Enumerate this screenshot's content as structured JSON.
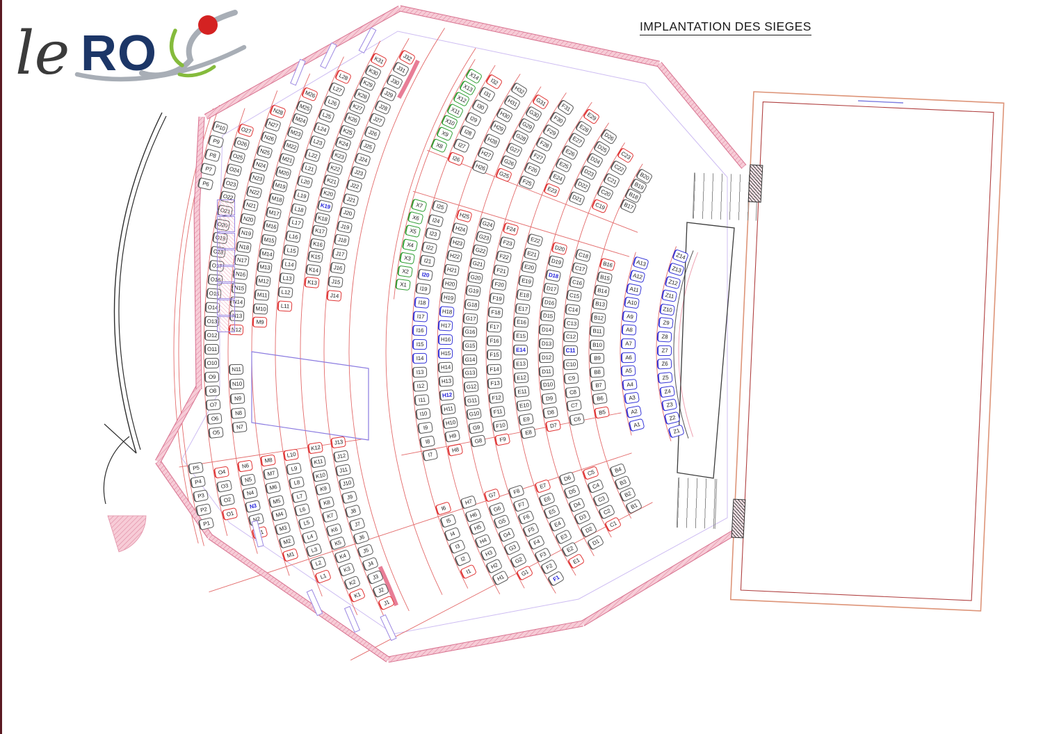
{
  "meta": {
    "drawing_title": "IMPLANTATION DES SIEGES"
  },
  "logo": {
    "script_text": "le",
    "main_text": "RO"
  },
  "colors": {
    "seat_black": "#565656",
    "seat_red": "#e03434",
    "seat_blue": "#3737d8",
    "seat_green": "#2f9e33",
    "label_blue": "#2424da",
    "wall_pink": "#f5c3d0",
    "wall_edge": "#d8718f",
    "arc_red": "#e36a6a",
    "logo_navy": "#1c3667",
    "logo_red": "#d42222",
    "logo_green": "#85bb3c",
    "logo_silver": "#a8aeb6"
  },
  "seating": {
    "rows": [
      {
        "letter": "Z",
        "blocks": [
          [
            1,
            14
          ]
        ],
        "style": "blue"
      },
      {
        "letter": "A",
        "blocks": [
          [
            1,
            13
          ]
        ],
        "style": "blue"
      },
      {
        "letter": "B",
        "blocks": [
          [
            1,
            4
          ],
          [
            5,
            16
          ],
          [
            17,
            20
          ]
        ],
        "red": [
          5,
          16
        ]
      },
      {
        "letter": "C",
        "blocks": [
          [
            1,
            5
          ],
          [
            6,
            18
          ],
          [
            19,
            23
          ]
        ],
        "red": [
          1,
          5,
          19,
          23
        ],
        "blue_label": [
          11
        ]
      },
      {
        "letter": "D",
        "blocks": [
          [
            1,
            6
          ],
          [
            7,
            20
          ],
          [
            21,
            26
          ]
        ],
        "red": [
          7,
          20
        ],
        "blue_label": [
          18
        ]
      },
      {
        "letter": "E",
        "blocks": [
          [
            1,
            7
          ],
          [
            8,
            22
          ],
          [
            23,
            29
          ]
        ],
        "red": [
          1,
          7,
          23,
          29
        ],
        "blue_label": [
          14
        ]
      },
      {
        "letter": "F",
        "blocks": [
          [
            1,
            8
          ],
          [
            9,
            24
          ],
          [
            25,
            31
          ]
        ],
        "red": [
          9,
          24
        ],
        "blue_label": [
          1
        ]
      },
      {
        "letter": "G",
        "blocks": [
          [
            1,
            7
          ],
          [
            8,
            24
          ],
          [
            25,
            31
          ]
        ],
        "red": [
          1,
          7,
          25,
          31
        ]
      },
      {
        "letter": "H",
        "blocks": [
          [
            1,
            7
          ],
          [
            8,
            25
          ],
          [
            26,
            32
          ]
        ],
        "red": [
          8,
          25
        ],
        "blue_seats": [
          15,
          16,
          17,
          18
        ],
        "blue_label": [
          12
        ]
      },
      {
        "letter": "I",
        "blocks": [
          [
            1,
            6
          ],
          [
            7,
            25
          ],
          [
            26,
            32
          ]
        ],
        "red": [
          1,
          6,
          26,
          32
        ],
        "blue_seats": [
          14,
          15,
          16,
          17,
          18
        ],
        "blue_label": [
          20
        ]
      },
      {
        "letter": "X",
        "blocks": [
          [
            1,
            7
          ],
          [
            8,
            14
          ]
        ],
        "style": "green"
      },
      {
        "letter": "J",
        "blocks": [
          [
            1,
            13
          ],
          [
            14,
            32
          ]
        ],
        "red": [
          1,
          13,
          14,
          32
        ]
      },
      {
        "letter": "K",
        "blocks": [
          [
            1,
            12
          ],
          [
            13,
            31
          ]
        ],
        "red": [
          1,
          12,
          13,
          31
        ],
        "blue_label": [
          19
        ]
      },
      {
        "letter": "L",
        "blocks": [
          [
            1,
            10
          ],
          [
            11,
            28
          ]
        ],
        "red": [
          1,
          10,
          11,
          28
        ]
      },
      {
        "letter": "M",
        "blocks": [
          [
            1,
            8
          ],
          [
            9,
            26
          ]
        ],
        "red": [
          1,
          8,
          9,
          26
        ]
      },
      {
        "letter": "N",
        "blocks": [
          [
            1,
            6
          ],
          [
            7,
            11
          ],
          [
            12,
            28
          ]
        ],
        "red": [
          1,
          6,
          12,
          28
        ],
        "blue_label": [
          3
        ]
      },
      {
        "letter": "O",
        "blocks": [
          [
            1,
            4
          ],
          [
            5,
            27
          ]
        ],
        "red": [
          1,
          4,
          27
        ]
      },
      {
        "letter": "P",
        "blocks": [
          [
            1,
            5
          ],
          [
            6,
            10
          ]
        ]
      }
    ]
  }
}
